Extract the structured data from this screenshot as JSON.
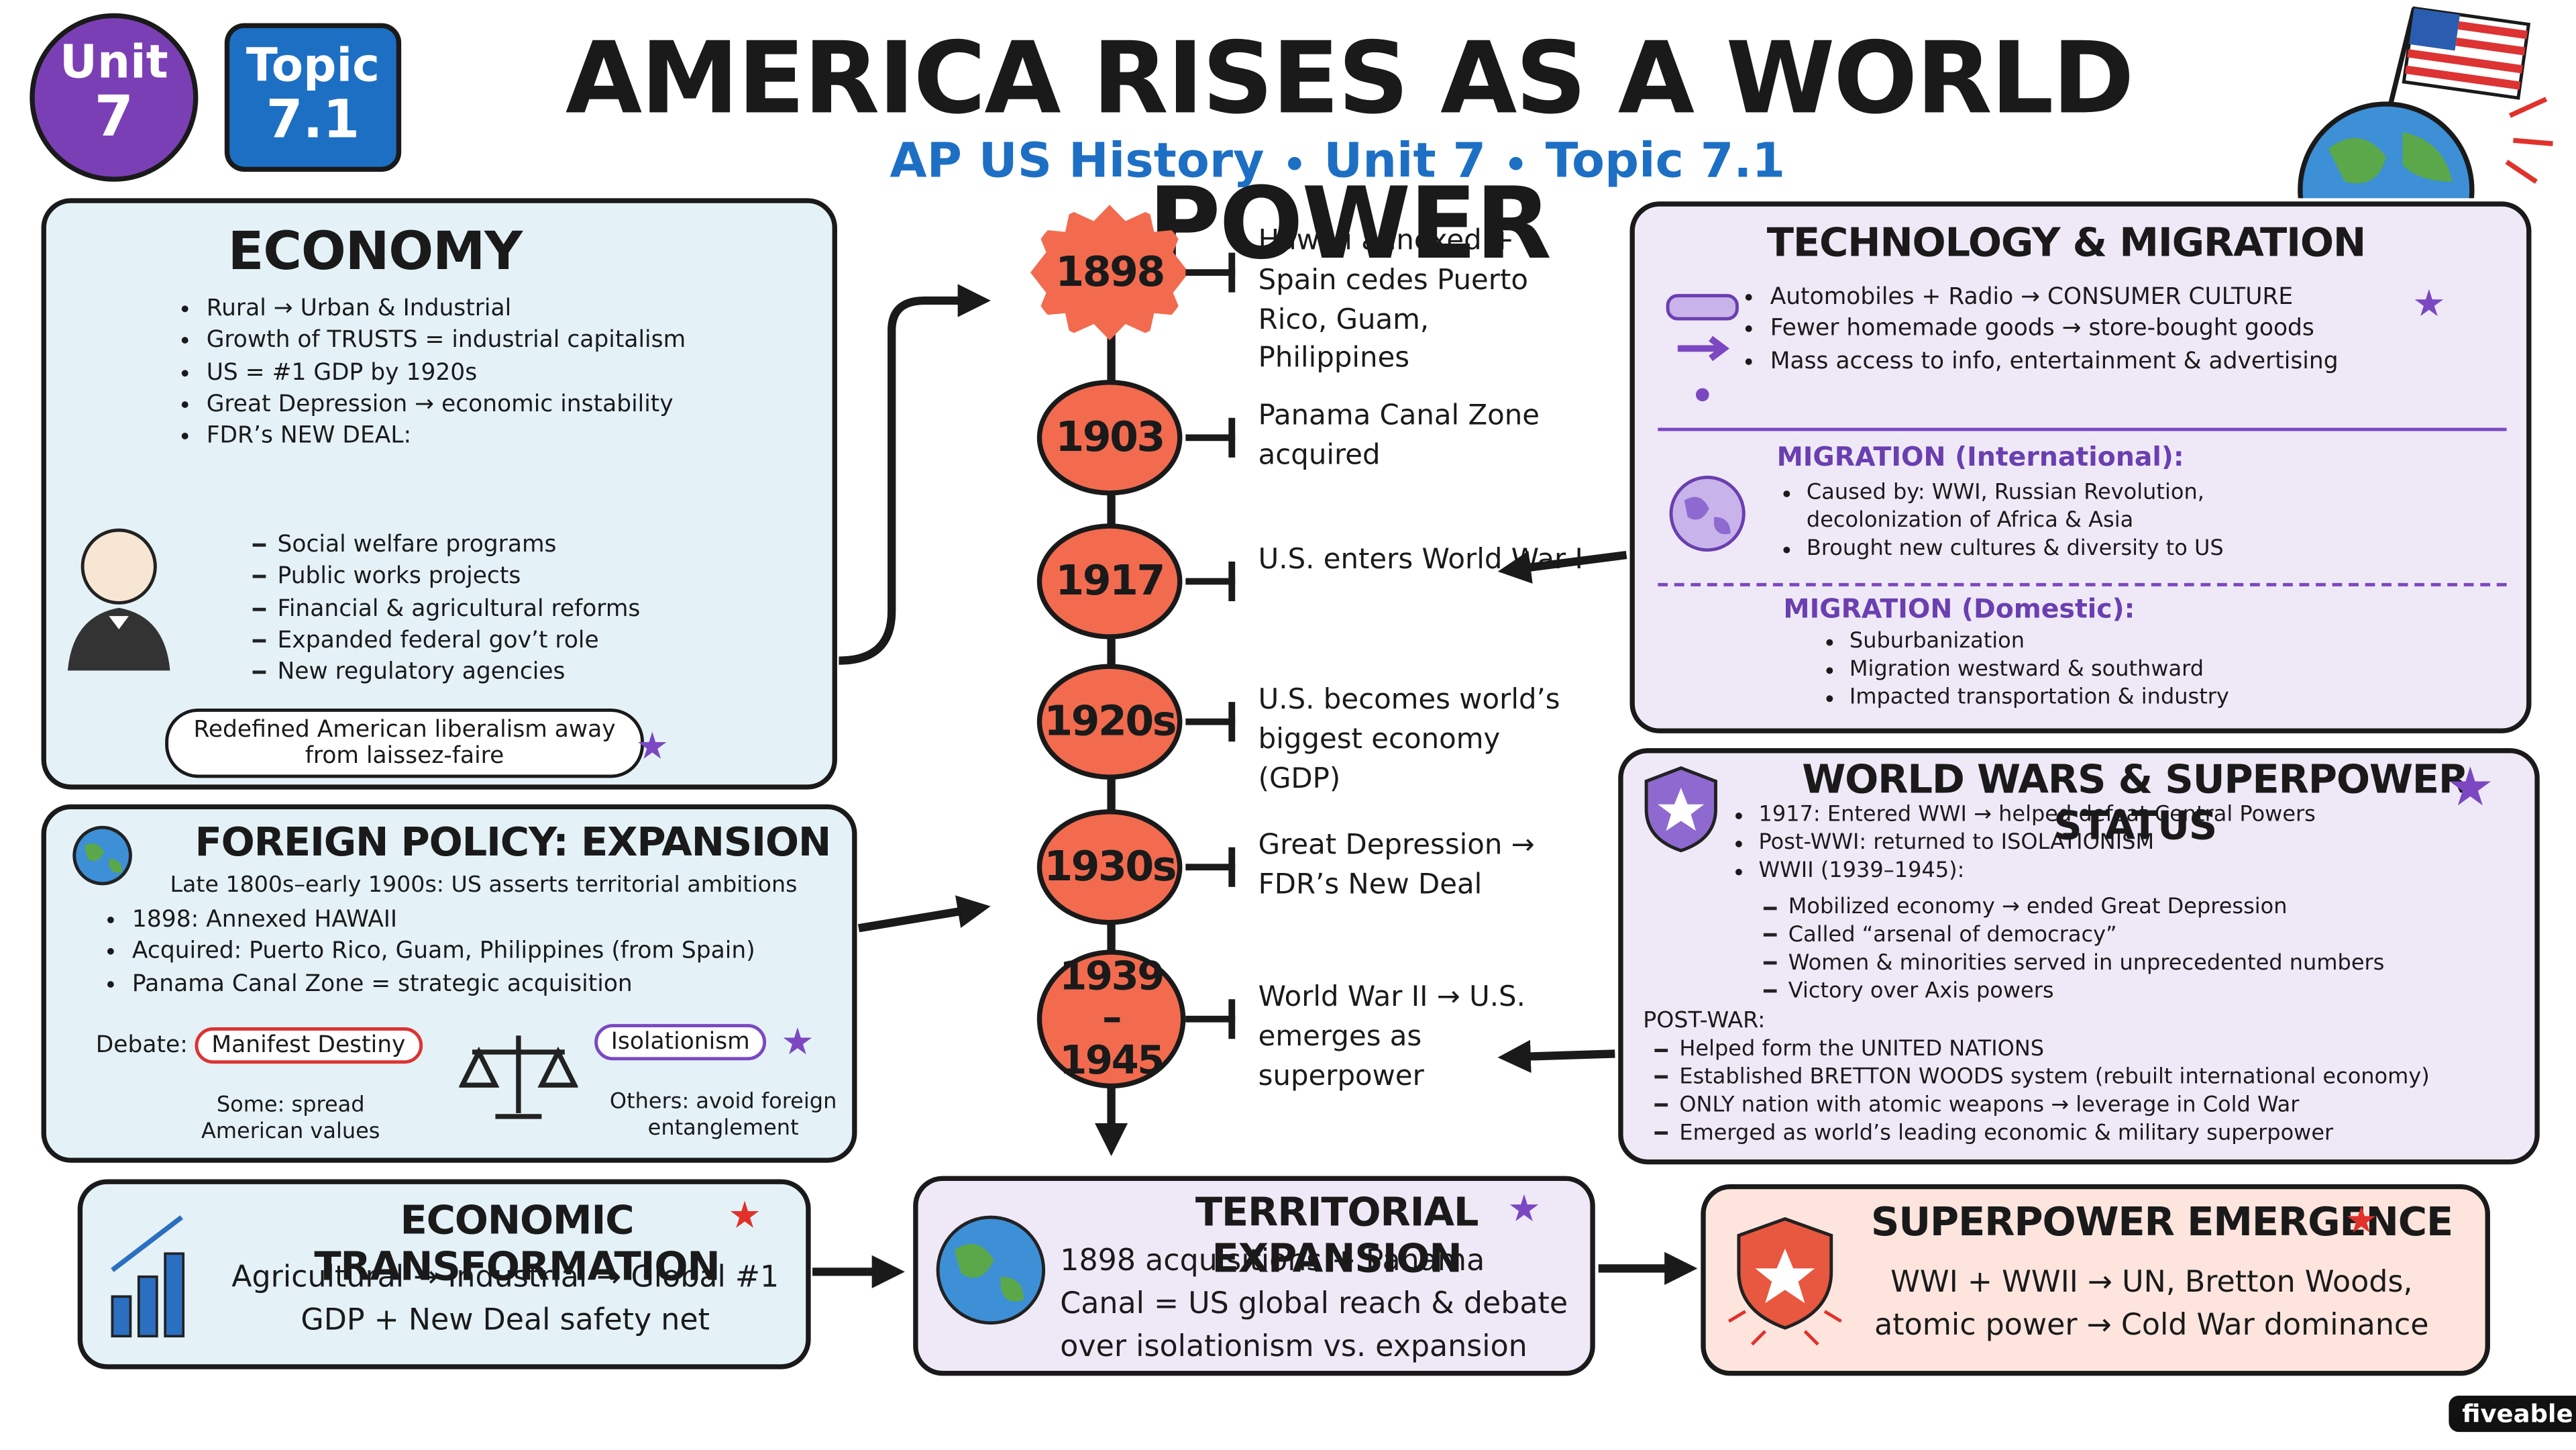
{
  "header": {
    "unit_badge": {
      "label": "Unit",
      "number": "7"
    },
    "topic_badge": {
      "label": "Topic",
      "number": "7.1"
    },
    "title": "AMERICA RISES AS A WORLD POWER",
    "subtitle": [
      "AP US History",
      "Unit 7",
      "Topic 7.1"
    ]
  },
  "economy": {
    "title": "ECONOMY",
    "bullets": [
      "Rural → Urban & Industrial",
      "Growth of TRUSTS = industrial capitalism",
      "US = #1 GDP by 1920s",
      "Great Depression → economic instability",
      "FDR’s NEW DEAL:"
    ],
    "new_deal_items": [
      "Social welfare programs",
      "Public works projects",
      "Financial & agricultural reforms",
      "Expanded federal gov’t role",
      "New regulatory agencies"
    ],
    "note": "Redefined American liberalism away from laissez-faire"
  },
  "timeline": [
    {
      "year": "1898",
      "event": "Hawaii annexed + Spain cedes Puerto Rico, Guam, Philippines"
    },
    {
      "year": "1903",
      "event": "Panama Canal Zone acquired"
    },
    {
      "year": "1917",
      "event": "U.S. enters World War I"
    },
    {
      "year": "1920s",
      "event": "U.S. becomes world’s biggest economy (GDP)"
    },
    {
      "year": "1930s",
      "event": "Great Depression → FDR’s New Deal"
    },
    {
      "year": "1939–1945",
      "event": "World War II → U.S. emerges as superpower"
    }
  ],
  "technology_migration": {
    "title": "TECHNOLOGY & MIGRATION",
    "bullets": [
      "Automobiles + Radio → CONSUMER CULTURE",
      "Fewer homemade goods → store-bought goods",
      "Mass access to info, entertainment & advertising"
    ],
    "international": {
      "title": "MIGRATION (International):",
      "bullets": [
        "Caused by: WWI, Russian Revolution, decolonization of Africa & Asia",
        "Brought new cultures & diversity to US"
      ]
    },
    "domestic": {
      "title": "MIGRATION (Domestic):",
      "bullets": [
        "Suburbanization",
        "Migration westward & southward",
        "Impacted transportation & industry"
      ]
    }
  },
  "foreign_policy": {
    "title": "FOREIGN POLICY: EXPANSION",
    "intro": "Late 1800s–early 1900s: US asserts territorial ambitions",
    "bullets": [
      "1898: Annexed HAWAII",
      "Acquired: Puerto Rico, Guam, Philippines (from Spain)",
      "Panama Canal Zone = strategic acquisition"
    ],
    "debate": {
      "label": "Debate:",
      "left": "Manifest Destiny",
      "left_note": "Some: spread American values",
      "right": "Isolationism",
      "right_note": "Others: avoid foreign entanglement"
    }
  },
  "world_wars": {
    "title": "WORLD WARS & SUPERPOWER STATUS",
    "bullets": [
      "1917: Entered WWI → helped defeat Central Powers",
      "Post-WWI: returned to ISOLATIONISM",
      "WWII (1939–1945):"
    ],
    "wwii_items": [
      "Mobilized economy → ended Great Depression",
      "Called “arsenal of democracy”",
      "Women & minorities served in unprecedented numbers",
      "Victory over Axis powers"
    ],
    "post_war_label": "POST-WAR:",
    "post_war_items": [
      "Helped form the UNITED NATIONS",
      "Established BRETTON WOODS system (rebuilt international economy)",
      "ONLY nation with atomic weapons → leverage in Cold War",
      "Emerged as world’s leading economic & military superpower"
    ]
  },
  "summary": {
    "economic_transformation": {
      "title": "ECONOMIC TRANSFORMATION",
      "text": "Agricultural → Industrial → Global #1 GDP + New Deal safety net"
    },
    "territorial_expansion": {
      "title": "TERRITORIAL EXPANSION",
      "text": "1898 acquisitions + Panama Canal = US global reach & debate over isolationism vs. expansion"
    },
    "superpower_emergence": {
      "title": "SUPERPOWER EMERGENCE",
      "text": "WWI + WWII → UN, Bretton Woods, atomic power → Cold War dominance"
    }
  },
  "brand": "fiveable"
}
